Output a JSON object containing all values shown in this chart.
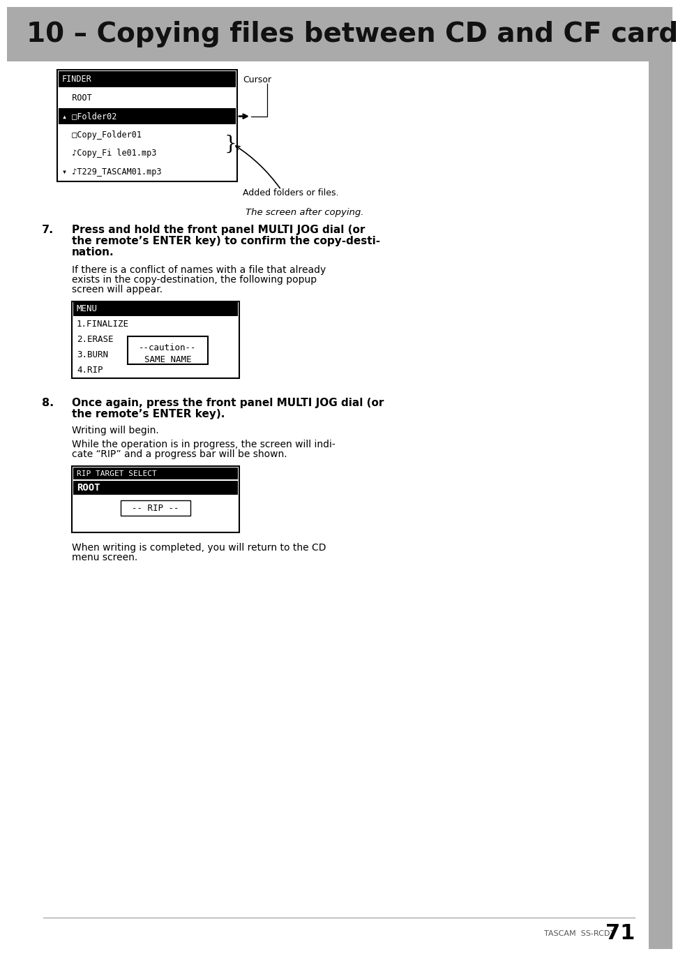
{
  "title": "10 – Copying files between CD and CF card",
  "title_bg": "#aaaaaa",
  "title_fg": "#111111",
  "page_bg": "#ffffff",
  "sidebar_color": "#aaaaaa",
  "page_number": "71",
  "page_model": "TASCAM  SS-RCD1",
  "screen1_content": [
    {
      "text": "FINDER",
      "inv": true
    },
    {
      "text": "  ROOT",
      "inv": false
    },
    {
      "text": "▴ □Folder02",
      "inv": true
    },
    {
      "text": "  □Copy_Folder01",
      "inv": false
    },
    {
      "text": "  ♪Copy_Fi le01.mp3",
      "inv": false
    },
    {
      "text": "▾ ♪T229_TASCAM01.mp3",
      "inv": false
    }
  ],
  "screen1_caption": "The screen after copying.",
  "cursor_label": "Cursor",
  "added_label": "Added folders or files.",
  "step7_bold": [
    "Press and hold the front panel MULTI JOG dial (or",
    "the remote’s ENTER key) to confirm the copy-desti-",
    "nation."
  ],
  "step7_normal": [
    "If there is a conflict of names with a file that already",
    "exists in the copy-destination, the following popup",
    "screen will appear."
  ],
  "screen2_content": [
    {
      "text": "MENU",
      "inv": true
    },
    {
      "text": "1.FINALIZE",
      "inv": false
    },
    {
      "text": "2.ERASE",
      "inv": false
    },
    {
      "text": "3.BURN",
      "inv": false
    },
    {
      "text": "4.RIP",
      "inv": false
    }
  ],
  "popup_lines": [
    "--caution--",
    "SAME NAME"
  ],
  "step8_bold": [
    "Once again, press the front panel MULTI JOG dial (or",
    "the remote’s ENTER key)."
  ],
  "step8_normal1": "Writing will begin.",
  "step8_normal2": [
    "While the operation is in progress, the screen will indi-",
    "cate “RIP” and a progress bar will be shown."
  ],
  "screen3_header": "RIP TARGET SELECT",
  "screen3_root": "ROOT",
  "screen3_rip": "-- RIP --",
  "step8_final": [
    "When writing is completed, you will return to the CD",
    "menu screen."
  ]
}
